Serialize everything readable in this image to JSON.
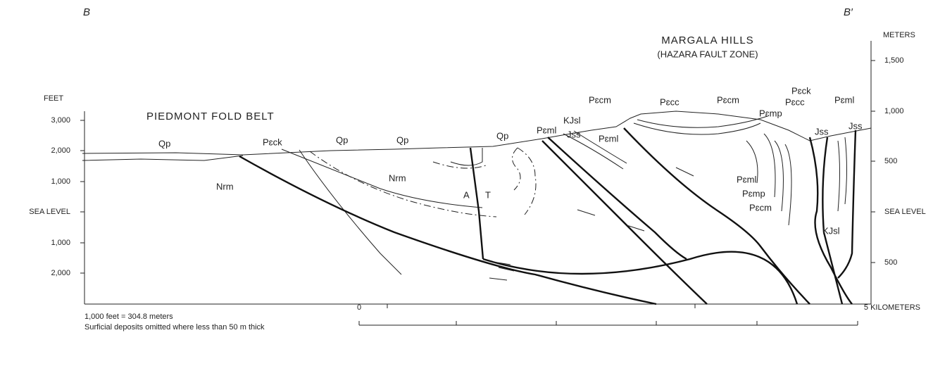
{
  "section": {
    "start": "B",
    "end": "B′"
  },
  "regions": {
    "piedmont": "PIEDMONT FOLD BELT",
    "margala": "MARGALA HILLS",
    "margala_sub": "(HAZARA FAULT ZONE)"
  },
  "left_axis": {
    "title": "FEET",
    "ticks": [
      "3,000",
      "2,000",
      "1,000",
      "SEA LEVEL",
      "1,000",
      "2,000"
    ]
  },
  "right_axis": {
    "title": "METERS",
    "ticks": [
      "1,500",
      "1,000",
      "500",
      "SEA LEVEL",
      "500"
    ]
  },
  "units": [
    "Qp",
    "Pɛck",
    "Qp",
    "Qp",
    "Qp",
    "Pɛml",
    "KJsl",
    "Jss",
    "Pɛcm",
    "Pɛcc",
    "Pɛcm",
    "Pɛck",
    "Pɛcc",
    "Pɛmp",
    "Pɛml",
    "Jss",
    "Jss",
    "Pɛml",
    "Nrm",
    "Nrm",
    "A",
    "T",
    "Pɛml",
    "Pɛmp",
    "Pɛcm",
    "KJsl"
  ],
  "notes": [
    "1,000 feet = 304.8 meters",
    "Surficial deposits omitted where less than 50 m thick"
  ],
  "scale": {
    "zero": "0",
    "end": "5 KILOMETERS"
  }
}
